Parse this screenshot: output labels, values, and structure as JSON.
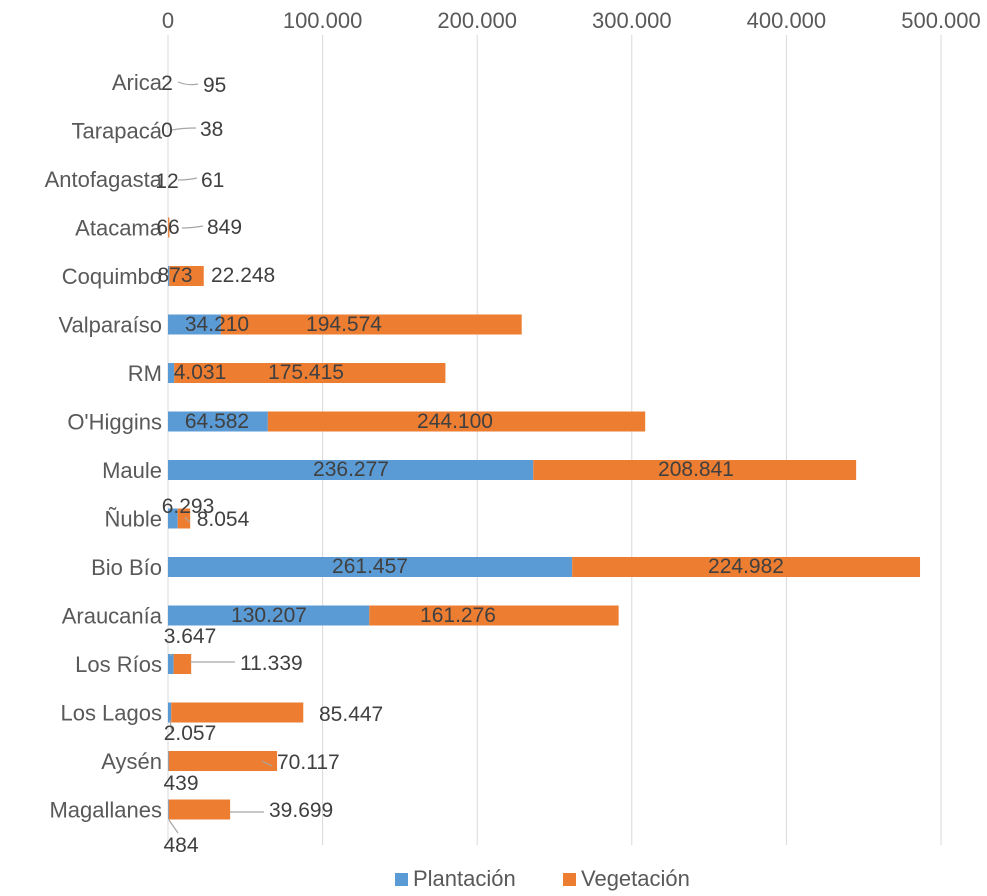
{
  "colors": {
    "plantacion": "#5b9bd5",
    "vegetacion": "#ed7d31",
    "grid": "#d9d9d9",
    "text": "#595959"
  },
  "chart_data": {
    "type": "bar",
    "orientation": "horizontal",
    "stacked": true,
    "title": "",
    "xlabel": "",
    "ylabel": "",
    "xlim": [
      0,
      500000
    ],
    "x_ticks": [
      0,
      100000,
      200000,
      300000,
      400000,
      500000
    ],
    "x_tick_labels": [
      "0",
      "100.000",
      "200.000",
      "300.000",
      "400.000",
      "500.000"
    ],
    "x_axis_position": "top",
    "grid": true,
    "legend": "bottom",
    "categories": [
      "Arica",
      "Tarapacá",
      "Antofagasta",
      "Atacama",
      "Coquimbo",
      "Valparaíso",
      "RM",
      "O'Higgins",
      "Maule",
      "Ñuble",
      "Bio Bío",
      "Araucanía",
      "Los Ríos",
      "Los Lagos",
      "Aysén",
      "Magallanes"
    ],
    "series": [
      {
        "name": "Plantación",
        "values": [
          2,
          0,
          12,
          66,
          873,
          34210,
          4031,
          64582,
          236277,
          6293,
          261457,
          130207,
          3647,
          2057,
          439,
          484
        ],
        "labels": [
          "2",
          "0",
          "12",
          "66",
          "873",
          "34.210",
          "4.031",
          "64.582",
          "236.277",
          "6.293",
          "261.457",
          "130.207",
          "3.647",
          "2.057",
          "439",
          "484"
        ]
      },
      {
        "name": "Vegetación",
        "values": [
          95,
          38,
          61,
          849,
          22248,
          194574,
          175415,
          244100,
          208841,
          8054,
          224982,
          161276,
          11339,
          85447,
          70117,
          39699
        ],
        "labels": [
          "95",
          "38",
          "61",
          "849",
          "22.248",
          "194.574",
          "175.415",
          "244.100",
          "208.841",
          "8.054",
          "224.982",
          "161.276",
          "11.339",
          "85.447",
          "70.117",
          "39.699"
        ]
      }
    ]
  }
}
